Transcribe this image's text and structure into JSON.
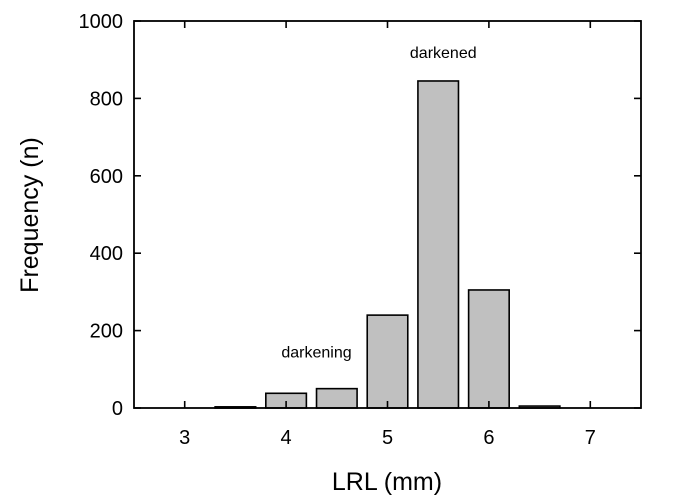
{
  "chart_data": {
    "type": "bar",
    "title": "",
    "xlabel": "LRL (mm)",
    "ylabel": "Frequency (n)",
    "xlim": [
      2.5,
      7.5
    ],
    "ylim": [
      0,
      1000
    ],
    "xticks": [
      3,
      4,
      5,
      6,
      7
    ],
    "xtick_labels": [
      "3",
      "4",
      "5",
      "6",
      "7"
    ],
    "yticks": [
      0,
      200,
      400,
      600,
      800,
      1000
    ],
    "ytick_labels": [
      "0",
      "200",
      "400",
      "600",
      "800",
      "1000"
    ],
    "bin_width": 0.5,
    "x": [
      3.5,
      4.0,
      4.5,
      5.0,
      5.5,
      6.0,
      6.5
    ],
    "values": [
      3,
      38,
      50,
      240,
      845,
      305,
      5
    ],
    "bar_color": "#c0c0c0",
    "grid": false,
    "annotations": [
      {
        "text": "darkening",
        "x": 4.3,
        "y": 130
      },
      {
        "text": "darkened",
        "x": 5.55,
        "y": 905
      }
    ]
  }
}
